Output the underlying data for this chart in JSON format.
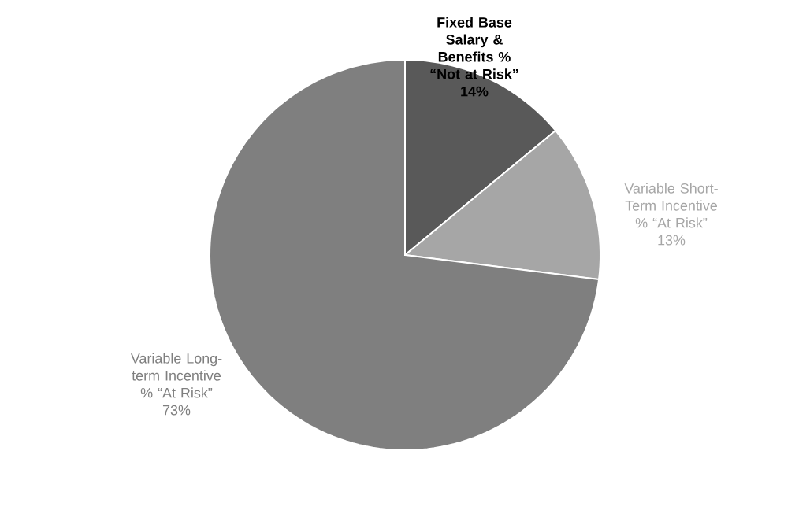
{
  "chart_data": {
    "type": "pie",
    "categories": [
      "Fixed Base Salary & Benefits % “Not at Risk”",
      "Variable Short-Term Incentive % “At Risk”",
      "Variable Long-term Incentive % “At Risk”"
    ],
    "values": [
      14,
      13,
      73
    ],
    "value_labels": [
      "14%",
      "13%",
      "73%"
    ],
    "colors": [
      "#595959",
      "#a6a6a6",
      "#7f7f7f"
    ]
  }
}
